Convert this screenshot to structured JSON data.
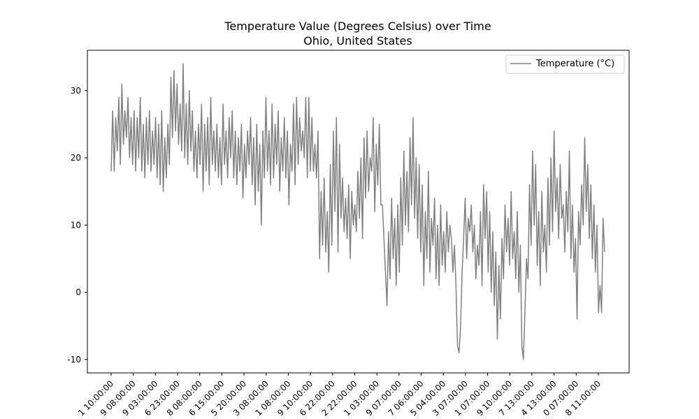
{
  "chart_data": {
    "type": "line",
    "title": "Temperature Value (Degrees Celsius) over Time",
    "subtitle": "Ohio, United States",
    "xlabel": "",
    "ylabel": "",
    "ylim": [
      -12,
      36
    ],
    "yticks": [
      -10,
      0,
      10,
      20,
      30
    ],
    "grid": false,
    "legend_position": "top-right",
    "xtick_labels": [
      "1 10:00:00",
      "9 08:00:00",
      "9 03:00:00",
      "6 23:00:00",
      "8 08:00:00",
      "6 15:00:00",
      "5 20:00:00",
      "3 08:00:00",
      "1 08:00:00",
      "9 10:00:00",
      "6 22:00:00",
      "2 22:00:00",
      "1 03:00:00",
      "9 07:00:00",
      "7 06:00:00",
      "5 04:00:00",
      "3 07:00:00",
      "1 07:00:00",
      "9 10:00:00",
      "7 13:00:00",
      "4 13:00:00",
      "0 07:00:00",
      "8 11:00:00"
    ],
    "series": [
      {
        "name": "Temperature (°C)",
        "color": "#808080",
        "values": [
          18,
          27,
          18,
          26,
          21,
          29,
          19,
          31,
          22,
          27,
          23,
          29,
          20,
          26,
          19,
          27,
          18,
          26,
          20,
          29,
          18,
          25,
          17,
          26,
          19,
          27,
          18,
          24,
          19,
          26,
          17,
          25,
          16,
          27,
          15,
          23,
          17,
          25,
          19,
          32,
          23,
          33,
          24,
          31,
          22,
          28,
          21,
          34,
          20,
          28,
          19,
          30,
          21,
          27,
          18,
          24,
          17,
          25,
          19,
          28,
          15,
          25,
          18,
          26,
          16,
          29,
          19,
          24,
          18,
          25,
          17,
          23,
          16,
          28,
          19,
          24,
          17,
          26,
          20,
          27,
          17,
          24,
          16,
          23,
          18,
          25,
          14,
          22,
          17,
          24,
          19,
          26,
          16,
          23,
          13,
          25,
          15,
          22,
          10,
          24,
          17,
          29,
          18,
          24,
          16,
          28,
          17,
          25,
          19,
          27,
          15,
          23,
          18,
          26,
          17,
          24,
          13,
          22,
          18,
          28,
          16,
          29,
          19,
          26,
          21,
          24,
          20,
          29,
          17,
          29,
          18,
          26,
          18,
          22,
          17,
          24,
          5,
          15,
          7,
          17,
          6,
          12,
          3,
          19,
          7,
          24,
          12,
          26,
          6,
          22,
          11,
          17,
          9,
          14,
          8,
          16,
          5,
          15,
          10,
          13,
          9,
          18,
          11,
          20,
          8,
          23,
          14,
          24,
          15,
          20,
          18,
          26,
          12,
          22,
          16,
          25,
          13,
          13,
          8,
          3,
          -2,
          9,
          2,
          14,
          5,
          11,
          1,
          13,
          3,
          17,
          7,
          21,
          10,
          18,
          9,
          23,
          13,
          26,
          11,
          20,
          8,
          19,
          6,
          16,
          1,
          12,
          5,
          18,
          3,
          11,
          7,
          14,
          2,
          10,
          1,
          13,
          4,
          9,
          3,
          12,
          6,
          10,
          8,
          3,
          7,
          1,
          -8,
          -9,
          -5,
          3,
          8,
          14,
          5,
          11,
          9,
          13,
          6,
          10,
          2,
          7,
          4,
          12,
          1,
          16,
          8,
          15,
          3,
          12,
          0,
          9,
          -2,
          6,
          -7,
          4,
          -4,
          8,
          2,
          13,
          6,
          11,
          4,
          15,
          5,
          9,
          2,
          12,
          0,
          7,
          -8,
          -10,
          -3,
          5,
          2,
          16,
          7,
          21,
          10,
          19,
          4,
          12,
          1,
          15,
          6,
          10,
          3,
          17,
          7,
          20,
          9,
          24,
          12,
          17,
          8,
          19,
          11,
          13,
          6,
          15,
          9,
          21,
          5,
          13,
          3,
          8,
          -4,
          12,
          7,
          16,
          10,
          23,
          12,
          19,
          8,
          16,
          5,
          13,
          3,
          10,
          -3,
          1,
          -3,
          11,
          6
        ]
      }
    ]
  }
}
